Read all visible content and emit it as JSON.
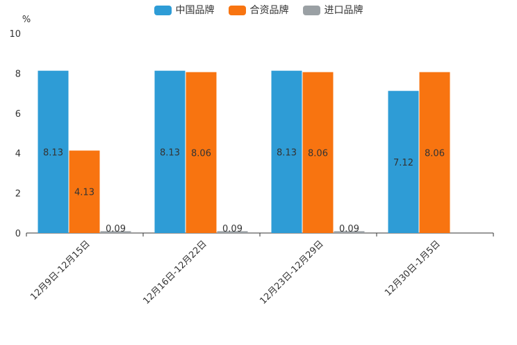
{
  "chart_data": {
    "type": "bar",
    "title": "",
    "ylabel": "%",
    "xlabel": "",
    "ylim": [
      0,
      10
    ],
    "yticks": [
      0,
      2,
      4,
      6,
      8,
      10
    ],
    "grid": false,
    "legend_position": "top",
    "axis_color": "#333333",
    "value_label_color": "#333333",
    "categories": [
      "12月9日-12月15日",
      "12月16日-12月22日",
      "12月23日-12月29日",
      "12月30日-1月5日"
    ],
    "series": [
      {
        "name": "中国品牌",
        "color": "#2e9cd6",
        "values": [
          8.13,
          8.13,
          8.13,
          7.12
        ],
        "labels": [
          "8.13",
          "8.13",
          "8.13",
          "7.12"
        ]
      },
      {
        "name": "合资品牌",
        "color": "#f87410",
        "values": [
          4.13,
          8.06,
          8.06,
          8.06
        ],
        "labels": [
          "4.13",
          "8.06",
          "8.06",
          "8.06"
        ]
      },
      {
        "name": "进口品牌",
        "color": "#9aa0a4",
        "values": [
          0.09,
          0.09,
          0.09,
          null
        ],
        "labels": [
          "0.09",
          "0.09",
          "0.09",
          null
        ]
      }
    ]
  }
}
